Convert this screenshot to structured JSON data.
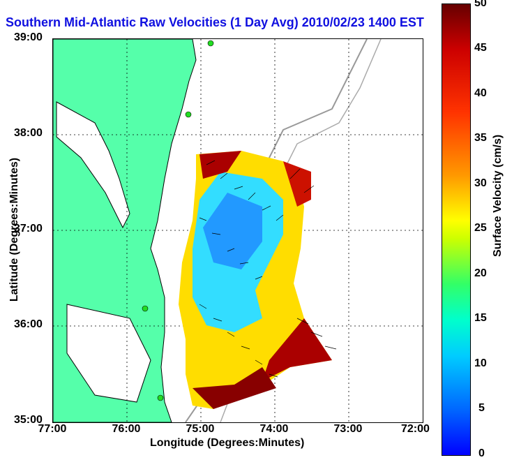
{
  "title": "Southern Mid-Atlantic Raw Velocities (1 Day Avg) 2010/02/23 1400 EST",
  "axes": {
    "x_label": "Longitude (Degrees:Minutes)",
    "y_label": "Latitude (Degrees:Minutes)",
    "x_ticks": [
      "77:00",
      "76:00",
      "75:00",
      "74:00",
      "73:00",
      "72:00"
    ],
    "y_ticks": [
      "39:00",
      "38:00",
      "37:00",
      "36:00",
      "35:00"
    ]
  },
  "colorbar": {
    "label": "Surface Velocity (cm/s)",
    "ticks": [
      "50",
      "45",
      "40",
      "35",
      "30",
      "25",
      "20",
      "15",
      "10",
      "5",
      "0"
    ]
  },
  "colors": {
    "land": "#55ffaa",
    "title": "#1010e0",
    "station": "#22dd22"
  }
}
